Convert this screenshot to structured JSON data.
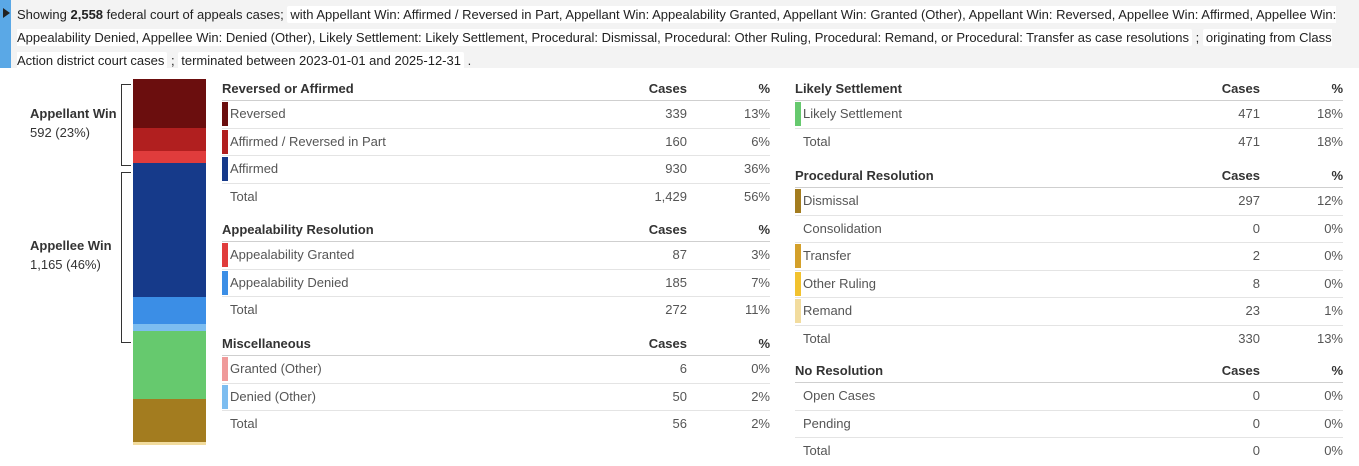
{
  "banner": {
    "showing_prefix": "Showing",
    "count": "2,558",
    "showing_suffix": "federal court of appeals cases;",
    "resolutions_chip": "with Appellant Win: Affirmed / Reversed in Part, Appellant Win: Appealability Granted, Appellant Win: Granted (Other), Appellant Win: Reversed, Appellee Win: Affirmed, Appellee Win: Appealability Denied, Appellee Win: Denied (Other), Likely Settlement: Likely Settlement, Procedural: Dismissal, Procedural: Other Ruling, Procedural: Remand, or Procedural: Transfer as case resolutions",
    "sep1": ";",
    "origin_chip": "originating from Class Action district court cases",
    "sep2": ";",
    "dates_chip": "terminated between 2023-01-01 and 2025-12-31",
    "end": "."
  },
  "groups": {
    "appellant": {
      "name": "Appellant Win",
      "value": "592 (23%)"
    },
    "appellee": {
      "name": "Appellee Win",
      "value": "1,165 (46%)"
    }
  },
  "bar_segments": [
    {
      "name": "Reversed",
      "cases": 339,
      "color": "#6b0e0e"
    },
    {
      "name": "Affirmed / Reversed in Part",
      "cases": 160,
      "color": "#b11f1f"
    },
    {
      "name": "Appealability Granted",
      "cases": 87,
      "color": "#e03c3c"
    },
    {
      "name": "Affirmed",
      "cases": 930,
      "color": "#163a8a"
    },
    {
      "name": "Appealability Denied",
      "cases": 185,
      "color": "#3b8ee6"
    },
    {
      "name": "Denied (Other)",
      "cases": 50,
      "color": "#7dbdf0"
    },
    {
      "name": "Likely Settlement",
      "cases": 471,
      "color": "#66c96e"
    },
    {
      "name": "Dismissal",
      "cases": 297,
      "color": "#a37c1f"
    },
    {
      "name": "Remand",
      "cases": 23,
      "color": "#f2dc9e"
    }
  ],
  "headers": {
    "cases": "Cases",
    "pct": "%"
  },
  "total_label": "Total",
  "tables": {
    "reversed_affirmed": {
      "title": "Reversed or Affirmed",
      "rows": [
        {
          "label": "Reversed",
          "cases": "339",
          "pct": "13%",
          "color": "#6b0e0e"
        },
        {
          "label": "Affirmed / Reversed in Part",
          "cases": "160",
          "pct": "6%",
          "color": "#b11f1f"
        },
        {
          "label": "Affirmed",
          "cases": "930",
          "pct": "36%",
          "color": "#163a8a"
        }
      ],
      "total": {
        "cases": "1,429",
        "pct": "56%"
      }
    },
    "appealability": {
      "title": "Appealability Resolution",
      "rows": [
        {
          "label": "Appealability Granted",
          "cases": "87",
          "pct": "3%",
          "color": "#e03c3c"
        },
        {
          "label": "Appealability Denied",
          "cases": "185",
          "pct": "7%",
          "color": "#3b8ee6"
        }
      ],
      "total": {
        "cases": "272",
        "pct": "11%"
      }
    },
    "misc": {
      "title": "Miscellaneous",
      "rows": [
        {
          "label": "Granted (Other)",
          "cases": "6",
          "pct": "0%",
          "color": "#ef9a9a"
        },
        {
          "label": "Denied (Other)",
          "cases": "50",
          "pct": "2%",
          "color": "#7dbdf0"
        }
      ],
      "total": {
        "cases": "56",
        "pct": "2%"
      }
    },
    "settlement": {
      "title": "Likely Settlement",
      "rows": [
        {
          "label": "Likely Settlement",
          "cases": "471",
          "pct": "18%",
          "color": "#66c96e"
        }
      ],
      "total": {
        "cases": "471",
        "pct": "18%"
      }
    },
    "procedural": {
      "title": "Procedural Resolution",
      "rows": [
        {
          "label": "Dismissal",
          "cases": "297",
          "pct": "12%",
          "color": "#a37c1f"
        },
        {
          "label": "Consolidation",
          "cases": "0",
          "pct": "0%",
          "color": ""
        },
        {
          "label": "Transfer",
          "cases": "2",
          "pct": "0%",
          "color": "#d4a02a"
        },
        {
          "label": "Other Ruling",
          "cases": "8",
          "pct": "0%",
          "color": "#f2c22e"
        },
        {
          "label": "Remand",
          "cases": "23",
          "pct": "1%",
          "color": "#f2dc9e"
        }
      ],
      "total": {
        "cases": "330",
        "pct": "13%"
      }
    },
    "no_resolution": {
      "title": "No Resolution",
      "rows": [
        {
          "label": "Open Cases",
          "cases": "0",
          "pct": "0%",
          "color": ""
        },
        {
          "label": "Pending",
          "cases": "0",
          "pct": "0%",
          "color": ""
        }
      ],
      "total": {
        "cases": "0",
        "pct": "0%"
      }
    }
  }
}
